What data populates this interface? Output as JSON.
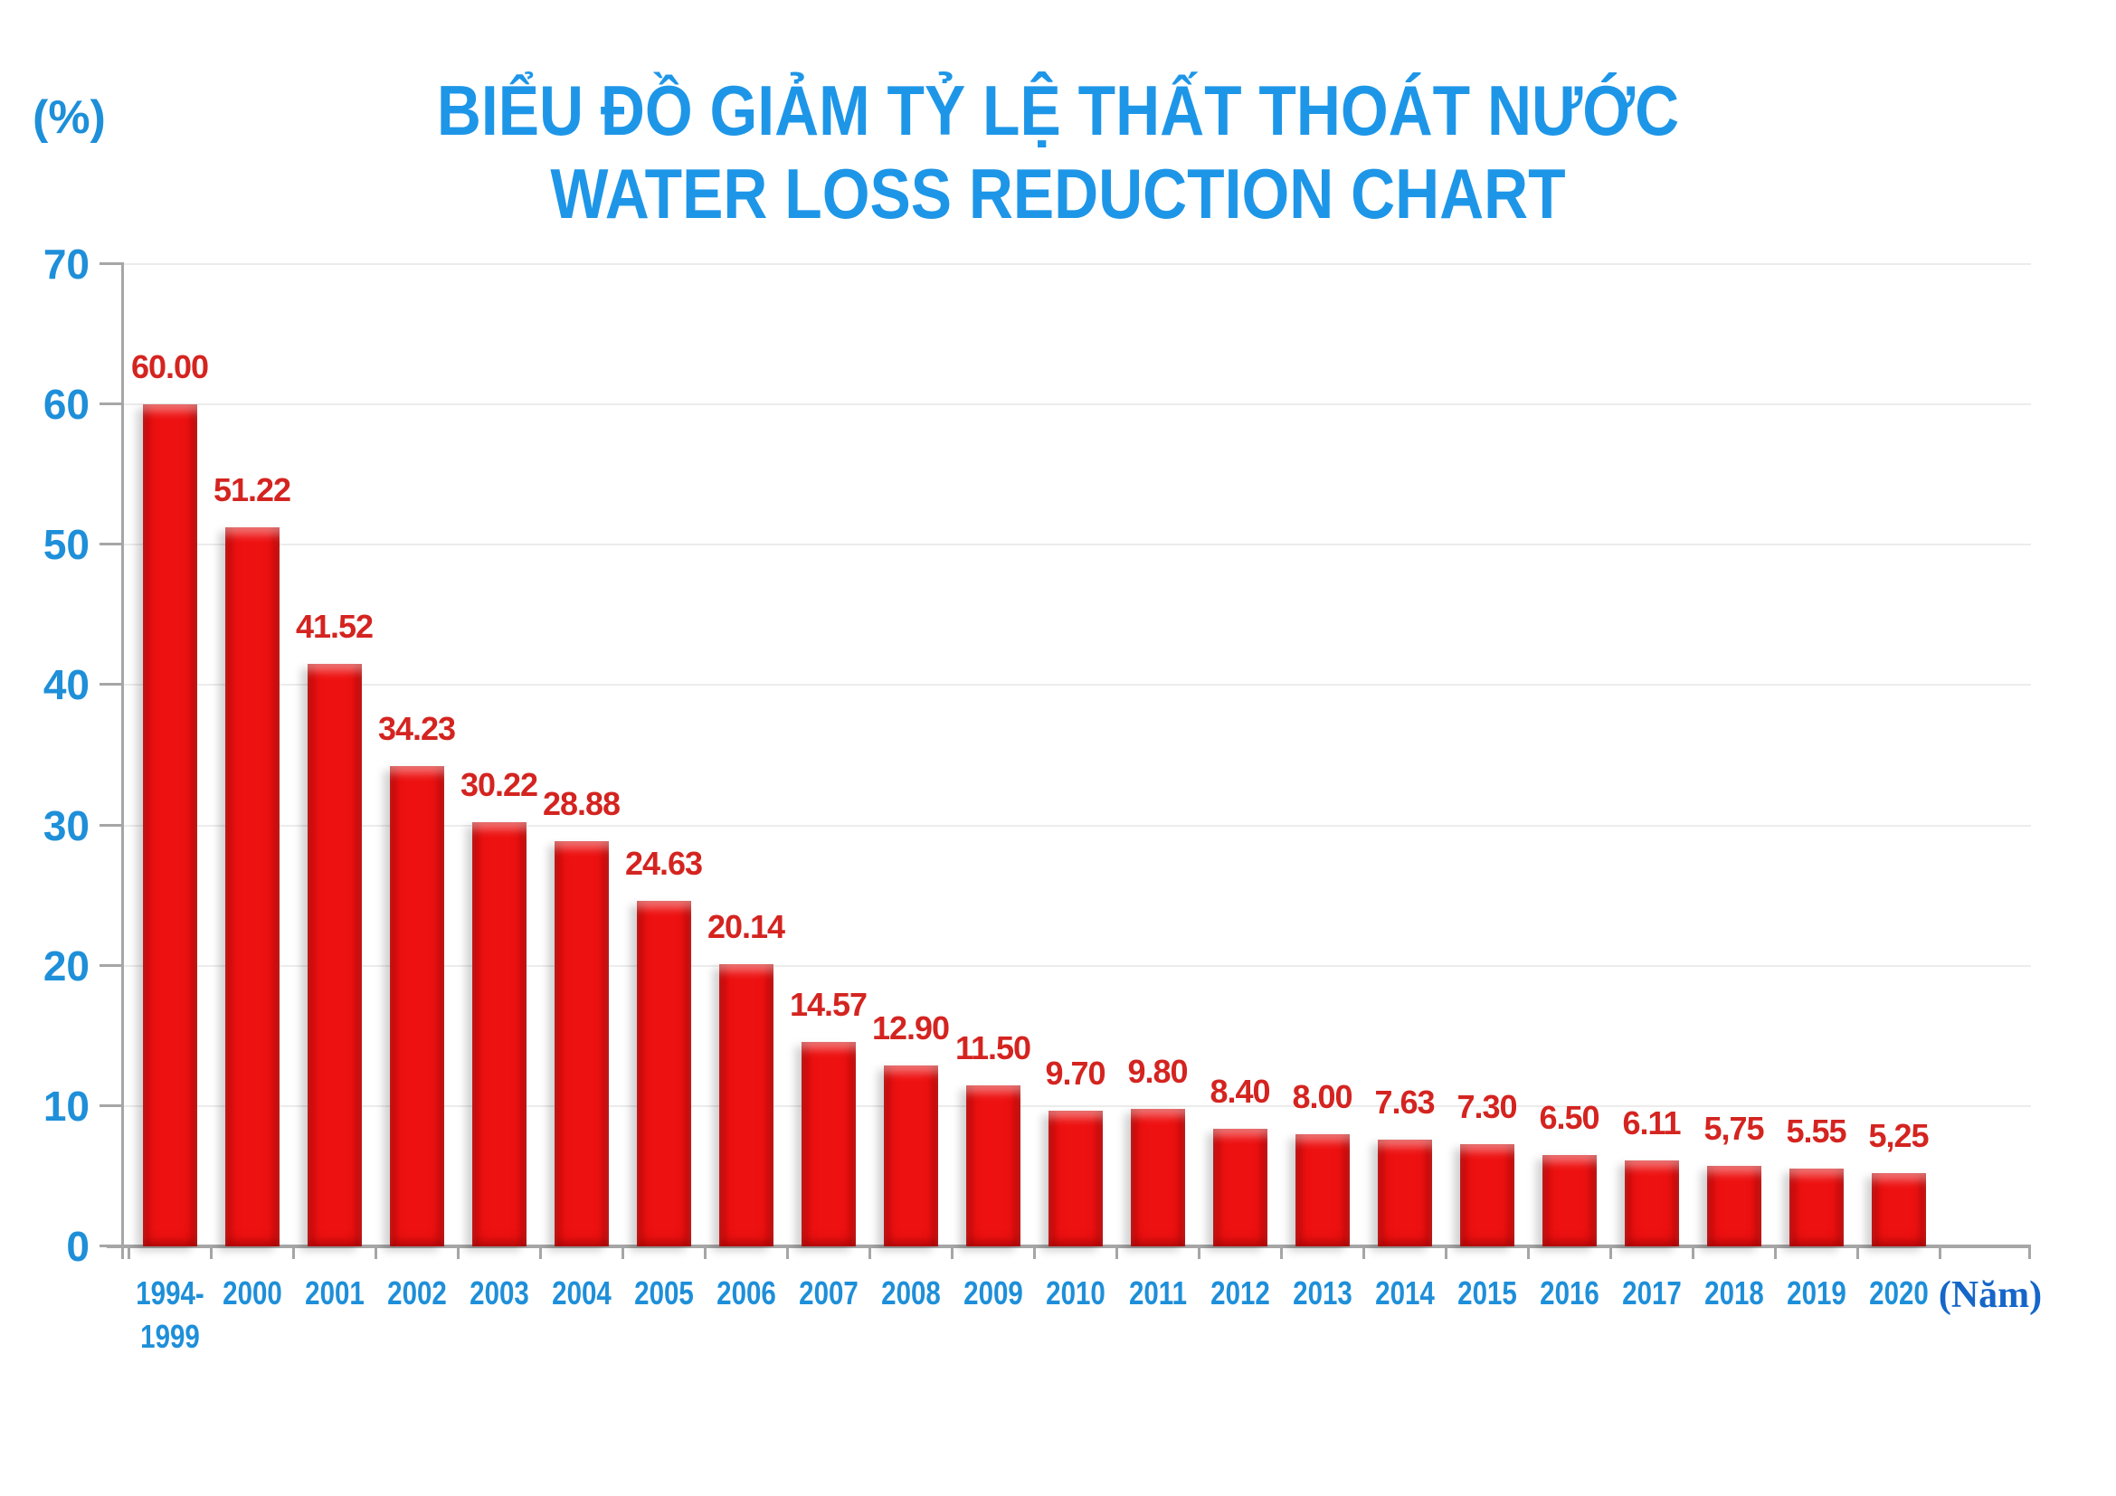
{
  "chart_data": {
    "type": "bar",
    "title": "BIỂU ĐỒ GIẢM TỶ LỆ THẤT THOÁT NƯỚC / WATER LOSS REDUCTION CHART",
    "title_lines": [
      "BIỂU ĐỒ GIẢM TỶ LỆ THẤT THOÁT NƯỚC",
      "WATER LOSS REDUCTION CHART"
    ],
    "xlabel": "(Năm)",
    "ylabel": "(%)",
    "x_axis_unit": "(Năm)",
    "y_axis_unit": "(%)",
    "categories": [
      "1994-1999",
      "2000",
      "2001",
      "2002",
      "2003",
      "2004",
      "2005",
      "2006",
      "2007",
      "2008",
      "2009",
      "2010",
      "2011",
      "2012",
      "2013",
      "2014",
      "2015",
      "2016",
      "2017",
      "2018",
      "2019",
      "2020"
    ],
    "values": [
      60.0,
      51.22,
      41.52,
      34.23,
      30.22,
      28.88,
      24.63,
      20.14,
      14.57,
      12.9,
      11.5,
      9.7,
      9.8,
      8.4,
      8.0,
      7.63,
      7.3,
      6.5,
      6.11,
      5.75,
      5.55,
      5.25
    ],
    "value_labels": [
      "60.00",
      "51.22",
      "41.52",
      "34.23",
      "30.22",
      "28.88",
      "24.63",
      "20.14",
      "14.57",
      "12.90",
      "11.50",
      "9.70",
      "9.80",
      "8.40",
      "8.00",
      "7.63",
      "7.30",
      "6.50",
      "6.11",
      "5,75",
      "5.55",
      "5,25"
    ],
    "x_tick_labels": [
      [
        "1994-",
        "1999"
      ],
      [
        "2000"
      ],
      [
        "2001"
      ],
      [
        "2002"
      ],
      [
        "2003"
      ],
      [
        "2004"
      ],
      [
        "2005"
      ],
      [
        "2006"
      ],
      [
        "2007"
      ],
      [
        "2008"
      ],
      [
        "2009"
      ],
      [
        "2010"
      ],
      [
        "2011"
      ],
      [
        "2012"
      ],
      [
        "2013"
      ],
      [
        "2014"
      ],
      [
        "2015"
      ],
      [
        "2016"
      ],
      [
        "2017"
      ],
      [
        "2018"
      ],
      [
        "2019"
      ],
      [
        "2020"
      ]
    ],
    "y_ticks": [
      0,
      10,
      20,
      30,
      40,
      50,
      60,
      70
    ],
    "ylim": [
      0,
      70
    ],
    "grid": true,
    "legend": false,
    "colors": {
      "bar": "#ee1111",
      "value_label": "#d42420",
      "title": "#1e96e8",
      "axis_label": "#1e8fd9",
      "x_unit_label": "#1566c8",
      "axis_line": "#a6a6a6",
      "gridline": "#ececec"
    }
  }
}
